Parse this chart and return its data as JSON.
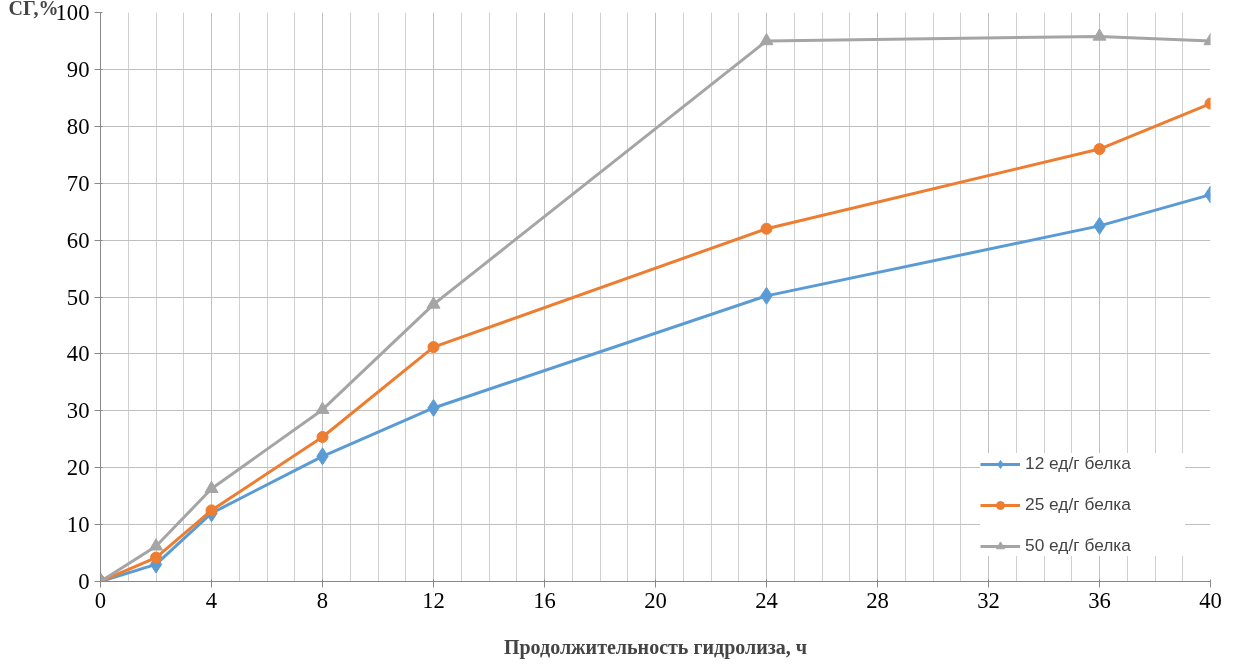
{
  "chart_data": {
    "type": "line",
    "xlabel": "Продолжительность гидролиза, ч",
    "ylabel": "СГ,%",
    "x": [
      0,
      2,
      4,
      8,
      12,
      24,
      36,
      40
    ],
    "series": [
      {
        "name": "12 ед/г белка",
        "color": "#5b9bd5",
        "marker": "diamond",
        "values": [
          0,
          3,
          12,
          22,
          30.5,
          50.2,
          62.5,
          68
        ]
      },
      {
        "name": "25 ед/г белка",
        "color": "#ed7d31",
        "marker": "circle",
        "values": [
          0,
          4.2,
          12.5,
          25.4,
          41.2,
          62,
          76,
          84
        ]
      },
      {
        "name": "50 ед/г белка",
        "color": "#a5a5a5",
        "marker": "triangle",
        "values": [
          0,
          6.2,
          16.3,
          30.2,
          48.7,
          95,
          95.8,
          95
        ]
      }
    ],
    "xlim": [
      0,
      40
    ],
    "xticks": [
      0,
      4,
      8,
      12,
      16,
      20,
      24,
      28,
      32,
      36,
      40
    ],
    "ylim": [
      0,
      100
    ],
    "yticks": [
      0,
      10,
      20,
      30,
      40,
      50,
      60,
      70,
      80,
      90,
      100
    ],
    "grid": true,
    "legend": "bottom right"
  }
}
